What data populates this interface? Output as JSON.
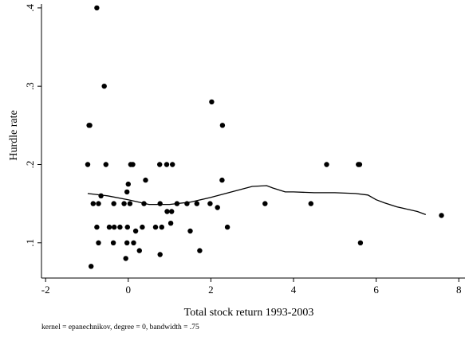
{
  "chart_data": {
    "type": "scatter",
    "title": "",
    "xlabel": "Total stock return 1993-2003",
    "ylabel": "Hurdle rate",
    "note": "kernel = epanechnikov, degree = 0, bandwidth = .75",
    "xlim": [
      -2.1,
      8.15
    ],
    "ylim": [
      0.055,
      0.405
    ],
    "xticks": [
      -2,
      0,
      2,
      4,
      6,
      8
    ],
    "xtick_labels": [
      "-2",
      "0",
      "2",
      "4",
      "6",
      "8"
    ],
    "yticks": [
      0.1,
      0.2,
      0.3,
      0.4
    ],
    "ytick_labels": [
      ".1",
      ".2",
      ".3",
      ".4"
    ],
    "grid": false,
    "series": [
      {
        "kind": "scatter",
        "marker": "circle",
        "color": "#000000",
        "points": [
          {
            "x": -0.76,
            "y": 0.4
          },
          {
            "x": -0.58,
            "y": 0.3
          },
          {
            "x": -0.95,
            "y": 0.25
          },
          {
            "x": -0.93,
            "y": 0.25
          },
          {
            "x": -0.98,
            "y": 0.2
          },
          {
            "x": -0.54,
            "y": 0.2
          },
          {
            "x": 0.06,
            "y": 0.2
          },
          {
            "x": 0.11,
            "y": 0.2
          },
          {
            "x": 0.76,
            "y": 0.2
          },
          {
            "x": 0.93,
            "y": 0.2
          },
          {
            "x": 1.07,
            "y": 0.2
          },
          {
            "x": 2.02,
            "y": 0.28
          },
          {
            "x": 2.28,
            "y": 0.25
          },
          {
            "x": 4.8,
            "y": 0.2
          },
          {
            "x": 5.57,
            "y": 0.2
          },
          {
            "x": 5.6,
            "y": 0.2
          },
          {
            "x": 0.42,
            "y": 0.18
          },
          {
            "x": 2.27,
            "y": 0.18
          },
          {
            "x": 0.0,
            "y": 0.175
          },
          {
            "x": -0.03,
            "y": 0.165
          },
          {
            "x": -0.66,
            "y": 0.16
          },
          {
            "x": -0.85,
            "y": 0.15
          },
          {
            "x": -0.72,
            "y": 0.15
          },
          {
            "x": -0.35,
            "y": 0.15
          },
          {
            "x": -0.1,
            "y": 0.15
          },
          {
            "x": 0.04,
            "y": 0.15
          },
          {
            "x": 0.38,
            "y": 0.15
          },
          {
            "x": 0.77,
            "y": 0.15
          },
          {
            "x": 1.18,
            "y": 0.15
          },
          {
            "x": 1.42,
            "y": 0.15
          },
          {
            "x": 1.66,
            "y": 0.15
          },
          {
            "x": 1.98,
            "y": 0.15
          },
          {
            "x": 3.31,
            "y": 0.15
          },
          {
            "x": 4.42,
            "y": 0.15
          },
          {
            "x": 2.16,
            "y": 0.145
          },
          {
            "x": 0.94,
            "y": 0.14
          },
          {
            "x": 1.05,
            "y": 0.14
          },
          {
            "x": 7.58,
            "y": 0.135
          },
          {
            "x": 1.03,
            "y": 0.125
          },
          {
            "x": -0.76,
            "y": 0.12
          },
          {
            "x": -0.46,
            "y": 0.12
          },
          {
            "x": -0.34,
            "y": 0.12
          },
          {
            "x": -0.2,
            "y": 0.12
          },
          {
            "x": -0.02,
            "y": 0.12
          },
          {
            "x": 0.34,
            "y": 0.12
          },
          {
            "x": 0.66,
            "y": 0.12
          },
          {
            "x": 0.81,
            "y": 0.12
          },
          {
            "x": 2.4,
            "y": 0.12
          },
          {
            "x": 0.18,
            "y": 0.115
          },
          {
            "x": 1.5,
            "y": 0.115
          },
          {
            "x": -0.72,
            "y": 0.1
          },
          {
            "x": -0.36,
            "y": 0.1
          },
          {
            "x": -0.03,
            "y": 0.1
          },
          {
            "x": 0.13,
            "y": 0.1
          },
          {
            "x": 5.62,
            "y": 0.1
          },
          {
            "x": 0.27,
            "y": 0.09
          },
          {
            "x": 1.73,
            "y": 0.09
          },
          {
            "x": 0.77,
            "y": 0.085
          },
          {
            "x": -0.06,
            "y": 0.08
          },
          {
            "x": -0.9,
            "y": 0.07
          }
        ]
      },
      {
        "kind": "line",
        "color": "#000000",
        "x": [
          -0.98,
          -0.5,
          0.0,
          0.5,
          1.0,
          1.5,
          2.0,
          2.5,
          3.0,
          3.35,
          3.5,
          3.8,
          4.0,
          4.5,
          5.0,
          5.5,
          5.8,
          6.0,
          6.2,
          6.5,
          7.0,
          7.2
        ],
        "y": [
          0.163,
          0.16,
          0.155,
          0.149,
          0.149,
          0.152,
          0.158,
          0.165,
          0.172,
          0.173,
          0.17,
          0.165,
          0.165,
          0.164,
          0.164,
          0.163,
          0.161,
          0.155,
          0.151,
          0.146,
          0.14,
          0.136
        ]
      }
    ]
  }
}
